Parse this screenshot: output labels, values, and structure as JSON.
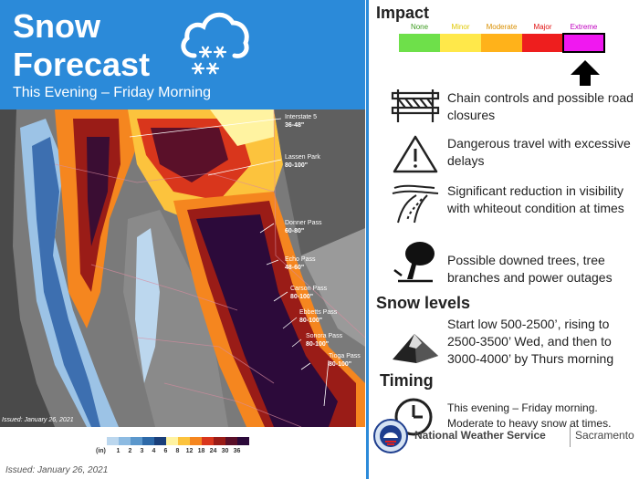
{
  "header": {
    "title_line1": "Snow",
    "title_line2": "Forecast",
    "subtitle": "This Evening – Friday Morning",
    "icon": "snow-cloud-icon"
  },
  "map": {
    "issued_inset": "Issued: January 26, 2021",
    "locations": [
      {
        "name": "Interstate 5",
        "value": "36-48\""
      },
      {
        "name": "Lassen Park",
        "value": "80-100\""
      },
      {
        "name": "Donner Pass",
        "value": "60-80\""
      },
      {
        "name": "Echo Pass",
        "value": "48-60\""
      },
      {
        "name": "Carson Pass",
        "value": "80-100\""
      },
      {
        "name": "Ebbetts Pass",
        "value": "80-100\""
      },
      {
        "name": "Sonora Pass",
        "value": "80-100\""
      },
      {
        "name": "Tioga Pass",
        "value": "80-100\""
      }
    ]
  },
  "legend": {
    "unit": "(in)",
    "ticks": [
      "1",
      "2",
      "3",
      "4",
      "6",
      "8",
      "12",
      "18",
      "24",
      "30",
      "36"
    ],
    "colors": [
      "#bcd7ee",
      "#8dbbe2",
      "#5b97cc",
      "#2d69a8",
      "#1a3f7a",
      "#fff3a1",
      "#fcc33d",
      "#f5861f",
      "#d9361c",
      "#9a1c17",
      "#5a1029",
      "#2c0a3a"
    ]
  },
  "issued": "Issued: January 26, 2021",
  "impact": {
    "title": "Impact",
    "levels": [
      {
        "label": "None",
        "color": "#6ee04a",
        "text_color": "#3a9a1e"
      },
      {
        "label": "Minor",
        "color": "#ffe84a",
        "text_color": "#e0c800"
      },
      {
        "label": "Moderate",
        "color": "#ffb21a",
        "text_color": "#d98f00"
      },
      {
        "label": "Major",
        "color": "#ee1e1e",
        "text_color": "#e01010"
      },
      {
        "label": "Extreme",
        "color": "#f018f0",
        "text_color": "#c000c0"
      }
    ],
    "selected": "Extreme"
  },
  "impacts": [
    {
      "icon": "chain-controls-icon",
      "text": "Chain controls and possible road closures"
    },
    {
      "icon": "warning-triangle-icon",
      "text": "Dangerous travel with excessive delays"
    },
    {
      "icon": "low-visibility-road-icon",
      "text": "Significant reduction in visibility with whiteout condition at times"
    },
    {
      "icon": "downed-tree-icon",
      "text": "Possible downed trees, tree branches and power outages"
    }
  ],
  "snow_levels": {
    "title": "Snow levels",
    "icon": "mountain-icon",
    "text": "Start low 500-2500’, rising to 2500-3500’ Wed, and then to 3000-4000’ by Thurs morning"
  },
  "timing": {
    "title": "Timing",
    "icon": "clock-icon",
    "text": "This evening – Friday morning. Moderate to heavy snow at times."
  },
  "footer": {
    "agency": "National Weather Service",
    "office": "Sacramento",
    "logo_text": "NATIONAL WEATHER SERVICE"
  }
}
